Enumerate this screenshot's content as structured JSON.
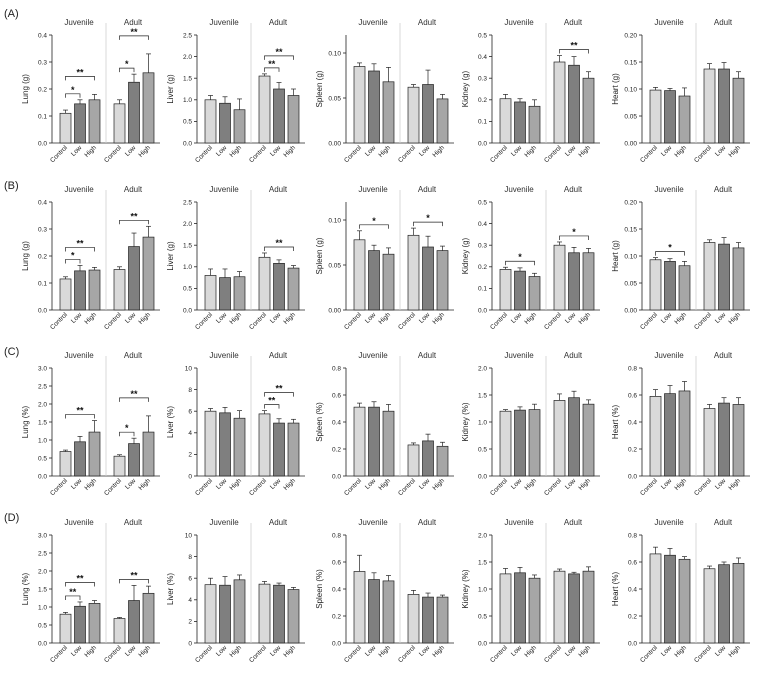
{
  "panel_letters": [
    "(A)",
    "(B)",
    "(C)",
    "(D)"
  ],
  "colors": {
    "Control": "#d9d9d9",
    "Low": "#7f7f7f",
    "High": "#a6a6a6",
    "edge": "#222222"
  },
  "chart_data": [
    {
      "type": "bar",
      "row": 0,
      "col": 0,
      "ylabel": "Lung (g)",
      "ylim": [
        0,
        0.4
      ],
      "yticks": [
        "0.0",
        "0.1",
        "0.2",
        "0.3",
        "0.4"
      ],
      "yvals": [
        0,
        0.1,
        0.2,
        0.3,
        0.4
      ],
      "groups": [
        "Juvenile",
        "Adult"
      ],
      "categories": [
        "Control",
        "Low",
        "High"
      ],
      "values": [
        [
          0.11,
          0.145,
          0.16
        ],
        [
          0.145,
          0.225,
          0.26
        ]
      ],
      "errors": [
        [
          0.012,
          0.015,
          0.02
        ],
        [
          0.015,
          0.03,
          0.07
        ]
      ],
      "sig": [
        {
          "g": 0,
          "a": 0,
          "b": 1,
          "label": "*"
        },
        {
          "g": 0,
          "a": 0,
          "b": 2,
          "label": "**"
        },
        {
          "g": 1,
          "a": 0,
          "b": 1,
          "label": "*"
        },
        {
          "g": 1,
          "a": 0,
          "b": 2,
          "label": "**"
        }
      ]
    },
    {
      "type": "bar",
      "row": 0,
      "col": 1,
      "ylabel": "Liver (g)",
      "ylim": [
        0,
        2.5
      ],
      "yticks": [
        "0.0",
        "0.5",
        "1.0",
        "1.5",
        "2.0",
        "2.5"
      ],
      "yvals": [
        0,
        0.5,
        1,
        1.5,
        2,
        2.5
      ],
      "groups": [
        "Juvenile",
        "Adult"
      ],
      "categories": [
        "Control",
        "Low",
        "High"
      ],
      "values": [
        [
          1.0,
          0.92,
          0.77
        ],
        [
          1.55,
          1.25,
          1.1
        ]
      ],
      "errors": [
        [
          0.1,
          0.15,
          0.25
        ],
        [
          0.05,
          0.15,
          0.15
        ]
      ],
      "sig": [
        {
          "g": 1,
          "a": 0,
          "b": 1,
          "label": "**"
        },
        {
          "g": 1,
          "a": 0,
          "b": 2,
          "label": "**"
        }
      ]
    },
    {
      "type": "bar",
      "row": 0,
      "col": 2,
      "ylabel": "Spleen (g)",
      "ylim": [
        0,
        0.12
      ],
      "yticks": [
        "0.00",
        "0.05",
        "0.10"
      ],
      "yvals": [
        0,
        0.05,
        0.1
      ],
      "groups": [
        "Juvenile",
        "Adult"
      ],
      "categories": [
        "Control",
        "Low",
        "High"
      ],
      "values": [
        [
          0.085,
          0.08,
          0.068
        ],
        [
          0.062,
          0.065,
          0.049
        ]
      ],
      "errors": [
        [
          0.004,
          0.008,
          0.016
        ],
        [
          0.003,
          0.016,
          0.005
        ]
      ],
      "sig": []
    },
    {
      "type": "bar",
      "row": 0,
      "col": 3,
      "ylabel": "Kidney (g)",
      "ylim": [
        0,
        0.5
      ],
      "yticks": [
        "0.0",
        "0.1",
        "0.2",
        "0.3",
        "0.4",
        "0.5"
      ],
      "yvals": [
        0,
        0.1,
        0.2,
        0.3,
        0.4,
        0.5
      ],
      "groups": [
        "Juvenile",
        "Adult"
      ],
      "categories": [
        "Control",
        "Low",
        "High"
      ],
      "values": [
        [
          0.205,
          0.19,
          0.17
        ],
        [
          0.375,
          0.36,
          0.3
        ]
      ],
      "errors": [
        [
          0.02,
          0.015,
          0.03
        ],
        [
          0.03,
          0.04,
          0.03
        ]
      ],
      "sig": [
        {
          "g": 1,
          "a": 0,
          "b": 2,
          "label": "**"
        }
      ]
    },
    {
      "type": "bar",
      "row": 0,
      "col": 4,
      "ylabel": "Heart (g)",
      "ylim": [
        0,
        0.2
      ],
      "yticks": [
        "0.00",
        "0.05",
        "0.10",
        "0.15",
        "0.20"
      ],
      "yvals": [
        0,
        0.05,
        0.1,
        0.15,
        0.2
      ],
      "groups": [
        "Juvenile",
        "Adult"
      ],
      "categories": [
        "Control",
        "Low",
        "High"
      ],
      "values": [
        [
          0.098,
          0.097,
          0.087
        ],
        [
          0.137,
          0.137,
          0.12
        ]
      ],
      "errors": [
        [
          0.005,
          0.004,
          0.015
        ],
        [
          0.01,
          0.012,
          0.012
        ]
      ],
      "sig": []
    },
    {
      "type": "bar",
      "row": 1,
      "col": 0,
      "ylabel": "Lung (g)",
      "ylim": [
        0,
        0.4
      ],
      "yticks": [
        "0.0",
        "0.1",
        "0.2",
        "0.3",
        "0.4"
      ],
      "yvals": [
        0,
        0.1,
        0.2,
        0.3,
        0.4
      ],
      "groups": [
        "Juvenile",
        "Adult"
      ],
      "categories": [
        "Control",
        "Low",
        "High"
      ],
      "values": [
        [
          0.115,
          0.145,
          0.148
        ],
        [
          0.15,
          0.235,
          0.27
        ]
      ],
      "errors": [
        [
          0.008,
          0.02,
          0.01
        ],
        [
          0.01,
          0.05,
          0.04
        ]
      ],
      "sig": [
        {
          "g": 0,
          "a": 0,
          "b": 1,
          "label": "*"
        },
        {
          "g": 0,
          "a": 0,
          "b": 2,
          "label": "**"
        },
        {
          "g": 1,
          "a": 0,
          "b": 2,
          "label": "**"
        }
      ]
    },
    {
      "type": "bar",
      "row": 1,
      "col": 1,
      "ylabel": "Liver (g)",
      "ylim": [
        0,
        2.5
      ],
      "yticks": [
        "0.0",
        "0.5",
        "1.0",
        "1.5",
        "2.0",
        "2.5"
      ],
      "yvals": [
        0,
        0.5,
        1,
        1.5,
        2,
        2.5
      ],
      "groups": [
        "Juvenile",
        "Adult"
      ],
      "categories": [
        "Control",
        "Low",
        "High"
      ],
      "values": [
        [
          0.8,
          0.75,
          0.77
        ],
        [
          1.22,
          1.08,
          0.97
        ]
      ],
      "errors": [
        [
          0.15,
          0.2,
          0.12
        ],
        [
          0.1,
          0.08,
          0.06
        ]
      ],
      "sig": [
        {
          "g": 1,
          "a": 0,
          "b": 2,
          "label": "**"
        }
      ]
    },
    {
      "type": "bar",
      "row": 1,
      "col": 2,
      "ylabel": "Spleen (g)",
      "ylim": [
        0,
        0.12
      ],
      "yticks": [
        "0.00",
        "0.05",
        "0.10"
      ],
      "yvals": [
        0,
        0.05,
        0.1
      ],
      "groups": [
        "Juvenile",
        "Adult"
      ],
      "categories": [
        "Control",
        "Low",
        "High"
      ],
      "values": [
        [
          0.078,
          0.066,
          0.062
        ],
        [
          0.083,
          0.07,
          0.066
        ]
      ],
      "errors": [
        [
          0.01,
          0.006,
          0.007
        ],
        [
          0.008,
          0.012,
          0.005
        ]
      ],
      "sig": [
        {
          "g": 0,
          "a": 0,
          "b": 2,
          "label": "*"
        },
        {
          "g": 1,
          "a": 0,
          "b": 2,
          "label": "*"
        }
      ]
    },
    {
      "type": "bar",
      "row": 1,
      "col": 3,
      "ylabel": "Kidney (g)",
      "ylim": [
        0,
        0.5
      ],
      "yticks": [
        "0.0",
        "0.1",
        "0.2",
        "0.3",
        "0.4",
        "0.5"
      ],
      "yvals": [
        0,
        0.1,
        0.2,
        0.3,
        0.4,
        0.5
      ],
      "groups": [
        "Juvenile",
        "Adult"
      ],
      "categories": [
        "Control",
        "Low",
        "High"
      ],
      "values": [
        [
          0.188,
          0.18,
          0.155
        ],
        [
          0.3,
          0.265,
          0.265
        ]
      ],
      "errors": [
        [
          0.01,
          0.015,
          0.015
        ],
        [
          0.015,
          0.025,
          0.02
        ]
      ],
      "sig": [
        {
          "g": 0,
          "a": 0,
          "b": 2,
          "label": "*"
        },
        {
          "g": 1,
          "a": 0,
          "b": 2,
          "label": "*"
        }
      ]
    },
    {
      "type": "bar",
      "row": 1,
      "col": 4,
      "ylabel": "Heart (g)",
      "ylim": [
        0,
        0.2
      ],
      "yticks": [
        "0.00",
        "0.05",
        "0.10",
        "0.15",
        "0.20"
      ],
      "yvals": [
        0,
        0.05,
        0.1,
        0.15,
        0.2
      ],
      "groups": [
        "Juvenile",
        "Adult"
      ],
      "categories": [
        "Control",
        "Low",
        "High"
      ],
      "values": [
        [
          0.093,
          0.09,
          0.082
        ],
        [
          0.125,
          0.122,
          0.115
        ]
      ],
      "errors": [
        [
          0.004,
          0.005,
          0.008
        ],
        [
          0.005,
          0.012,
          0.01
        ]
      ],
      "sig": [
        {
          "g": 0,
          "a": 0,
          "b": 2,
          "label": "*"
        }
      ]
    },
    {
      "type": "bar",
      "row": 2,
      "col": 0,
      "ylabel": "Lung (%)",
      "ylim": [
        0,
        3.0
      ],
      "yticks": [
        "0.0",
        "0.5",
        "1.0",
        "1.5",
        "2.0",
        "2.5",
        "3.0"
      ],
      "yvals": [
        0,
        0.5,
        1,
        1.5,
        2,
        2.5,
        3
      ],
      "groups": [
        "Juvenile",
        "Adult"
      ],
      "categories": [
        "Control",
        "Low",
        "High"
      ],
      "values": [
        [
          0.68,
          0.95,
          1.22
        ],
        [
          0.55,
          0.9,
          1.22
        ]
      ],
      "errors": [
        [
          0.04,
          0.15,
          0.32
        ],
        [
          0.04,
          0.15,
          0.45
        ]
      ],
      "sig": [
        {
          "g": 0,
          "a": 0,
          "b": 2,
          "label": "**"
        },
        {
          "g": 1,
          "a": 0,
          "b": 1,
          "label": "*"
        },
        {
          "g": 1,
          "a": 0,
          "b": 2,
          "label": "**"
        }
      ]
    },
    {
      "type": "bar",
      "row": 2,
      "col": 1,
      "ylabel": "Liver (%)",
      "ylim": [
        0,
        10
      ],
      "yticks": [
        "0",
        "2",
        "4",
        "6",
        "8",
        "10"
      ],
      "yvals": [
        0,
        2,
        4,
        6,
        8,
        10
      ],
      "groups": [
        "Juvenile",
        "Adult"
      ],
      "categories": [
        "Control",
        "Low",
        "High"
      ],
      "values": [
        [
          6.0,
          5.85,
          5.35
        ],
        [
          5.75,
          4.9,
          4.9
        ]
      ],
      "errors": [
        [
          0.25,
          0.5,
          0.7
        ],
        [
          0.3,
          0.4,
          0.35
        ]
      ],
      "sig": [
        {
          "g": 1,
          "a": 0,
          "b": 1,
          "label": "**"
        },
        {
          "g": 1,
          "a": 0,
          "b": 2,
          "label": "**"
        }
      ]
    },
    {
      "type": "bar",
      "row": 2,
      "col": 2,
      "ylabel": "Spleen (%)",
      "ylim": [
        0,
        0.8
      ],
      "yticks": [
        "0.0",
        "0.2",
        "0.4",
        "0.6",
        "0.8"
      ],
      "yvals": [
        0,
        0.2,
        0.4,
        0.6,
        0.8
      ],
      "groups": [
        "Juvenile",
        "Adult"
      ],
      "categories": [
        "Control",
        "Low",
        "High"
      ],
      "values": [
        [
          0.51,
          0.51,
          0.48
        ],
        [
          0.23,
          0.26,
          0.22
        ]
      ],
      "errors": [
        [
          0.03,
          0.04,
          0.05
        ],
        [
          0.015,
          0.05,
          0.03
        ]
      ],
      "sig": []
    },
    {
      "type": "bar",
      "row": 2,
      "col": 3,
      "ylabel": "Kidney (%)",
      "ylim": [
        0,
        2.0
      ],
      "yticks": [
        "0.0",
        "0.5",
        "1.0",
        "1.5",
        "2.0"
      ],
      "yvals": [
        0,
        0.5,
        1,
        1.5,
        2
      ],
      "groups": [
        "Juvenile",
        "Adult"
      ],
      "categories": [
        "Control",
        "Low",
        "High"
      ],
      "values": [
        [
          1.2,
          1.22,
          1.23
        ],
        [
          1.4,
          1.45,
          1.33
        ]
      ],
      "errors": [
        [
          0.03,
          0.06,
          0.1
        ],
        [
          0.12,
          0.12,
          0.08
        ]
      ],
      "sig": []
    },
    {
      "type": "bar",
      "row": 2,
      "col": 4,
      "ylabel": "Heart (%)",
      "ylim": [
        0,
        0.8
      ],
      "yticks": [
        "0.0",
        "0.2",
        "0.4",
        "0.6",
        "0.8"
      ],
      "yvals": [
        0,
        0.2,
        0.4,
        0.6,
        0.8
      ],
      "groups": [
        "Juvenile",
        "Adult"
      ],
      "categories": [
        "Control",
        "Low",
        "High"
      ],
      "values": [
        [
          0.59,
          0.61,
          0.63
        ],
        [
          0.5,
          0.54,
          0.53
        ]
      ],
      "errors": [
        [
          0.05,
          0.06,
          0.07
        ],
        [
          0.03,
          0.04,
          0.05
        ]
      ],
      "sig": []
    },
    {
      "type": "bar",
      "row": 3,
      "col": 0,
      "ylabel": "Lung (%)",
      "ylim": [
        0,
        3.0
      ],
      "yticks": [
        "0.0",
        "0.5",
        "1.0",
        "1.5",
        "2.0",
        "2.5",
        "3.0"
      ],
      "yvals": [
        0,
        0.5,
        1,
        1.5,
        2,
        2.5,
        3
      ],
      "groups": [
        "Juvenile",
        "Adult"
      ],
      "categories": [
        "Control",
        "Low",
        "High"
      ],
      "values": [
        [
          0.8,
          1.02,
          1.1
        ],
        [
          0.68,
          1.18,
          1.38
        ]
      ],
      "errors": [
        [
          0.05,
          0.12,
          0.08
        ],
        [
          0.03,
          0.42,
          0.2
        ]
      ],
      "sig": [
        {
          "g": 0,
          "a": 0,
          "b": 1,
          "label": "**"
        },
        {
          "g": 0,
          "a": 0,
          "b": 2,
          "label": "**"
        },
        {
          "g": 1,
          "a": 0,
          "b": 2,
          "label": "**"
        }
      ]
    },
    {
      "type": "bar",
      "row": 3,
      "col": 1,
      "ylabel": "Liver (%)",
      "ylim": [
        0,
        10
      ],
      "yticks": [
        "0",
        "2",
        "4",
        "6",
        "8",
        "10"
      ],
      "yvals": [
        0,
        2,
        4,
        6,
        8,
        10
      ],
      "groups": [
        "Juvenile",
        "Adult"
      ],
      "categories": [
        "Control",
        "Low",
        "High"
      ],
      "values": [
        [
          5.4,
          5.35,
          5.85
        ],
        [
          5.45,
          5.35,
          4.95
        ]
      ],
      "errors": [
        [
          0.6,
          0.8,
          0.45
        ],
        [
          0.25,
          0.2,
          0.2
        ]
      ],
      "sig": []
    },
    {
      "type": "bar",
      "row": 3,
      "col": 2,
      "ylabel": "Spleen (%)",
      "ylim": [
        0,
        0.8
      ],
      "yticks": [
        "0.0",
        "0.2",
        "0.4",
        "0.6",
        "0.8"
      ],
      "yvals": [
        0,
        0.2,
        0.4,
        0.6,
        0.8
      ],
      "groups": [
        "Juvenile",
        "Adult"
      ],
      "categories": [
        "Control",
        "Low",
        "High"
      ],
      "values": [
        [
          0.53,
          0.47,
          0.46
        ],
        [
          0.36,
          0.34,
          0.34
        ]
      ],
      "errors": [
        [
          0.12,
          0.05,
          0.04
        ],
        [
          0.03,
          0.03,
          0.015
        ]
      ],
      "sig": []
    },
    {
      "type": "bar",
      "row": 3,
      "col": 3,
      "ylabel": "Kidney (%)",
      "ylim": [
        0,
        2.0
      ],
      "yticks": [
        "0.0",
        "0.5",
        "1.0",
        "1.5",
        "2.0"
      ],
      "yvals": [
        0,
        0.5,
        1,
        1.5,
        2
      ],
      "groups": [
        "Juvenile",
        "Adult"
      ],
      "categories": [
        "Control",
        "Low",
        "High"
      ],
      "values": [
        [
          1.28,
          1.3,
          1.2
        ],
        [
          1.33,
          1.28,
          1.33
        ]
      ],
      "errors": [
        [
          0.1,
          0.1,
          0.06
        ],
        [
          0.04,
          0.03,
          0.08
        ]
      ],
      "sig": []
    },
    {
      "type": "bar",
      "row": 3,
      "col": 4,
      "ylabel": "Heart (%)",
      "ylim": [
        0,
        0.8
      ],
      "yticks": [
        "0.0",
        "0.2",
        "0.4",
        "0.6",
        "0.8"
      ],
      "yvals": [
        0,
        0.2,
        0.4,
        0.6,
        0.8
      ],
      "groups": [
        "Juvenile",
        "Adult"
      ],
      "categories": [
        "Control",
        "Low",
        "High"
      ],
      "values": [
        [
          0.66,
          0.65,
          0.62
        ],
        [
          0.55,
          0.58,
          0.59
        ]
      ],
      "errors": [
        [
          0.05,
          0.05,
          0.02
        ],
        [
          0.02,
          0.02,
          0.04
        ]
      ],
      "sig": []
    }
  ]
}
